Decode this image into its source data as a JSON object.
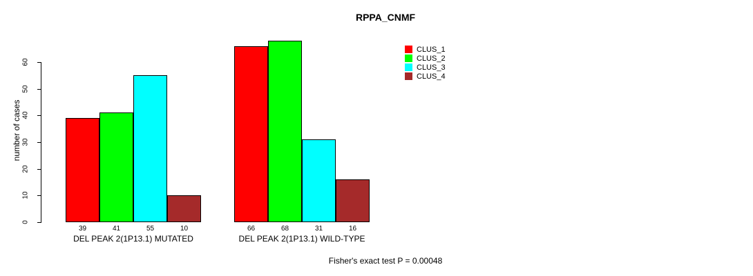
{
  "title": "RPPA_CNMF",
  "ylabel": "number of cases",
  "footnote": "Fisher's exact test P = 0.00048",
  "chart_data": {
    "type": "bar",
    "title": "RPPA_CNMF",
    "xlabel": "",
    "ylabel": "number of cases",
    "ylim": [
      0,
      60
    ],
    "yticks": [
      0,
      10,
      20,
      30,
      40,
      50,
      60
    ],
    "grid": false,
    "legend_position": "right-outside",
    "categories": [
      "DEL PEAK 2(1P13.1) MUTATED",
      "DEL PEAK 2(1P13.1) WILD-TYPE"
    ],
    "series": [
      {
        "name": "CLUS_1",
        "color": "#ff0000",
        "values": [
          39,
          66
        ]
      },
      {
        "name": "CLUS_2",
        "color": "#00ff00",
        "values": [
          41,
          68
        ]
      },
      {
        "name": "CLUS_3",
        "color": "#00ffff",
        "values": [
          55,
          31
        ]
      },
      {
        "name": "CLUS_4",
        "color": "#a52a2a",
        "values": [
          10,
          16
        ]
      }
    ],
    "bar_value_labels_shown": true,
    "annotation": "Fisher's exact test P = 0.00048"
  },
  "legend": {
    "items": [
      {
        "label": "CLUS_1",
        "color": "#ff0000"
      },
      {
        "label": "CLUS_2",
        "color": "#00ff00"
      },
      {
        "label": "CLUS_3",
        "color": "#00ffff"
      },
      {
        "label": "CLUS_4",
        "color": "#a52a2a"
      }
    ]
  }
}
